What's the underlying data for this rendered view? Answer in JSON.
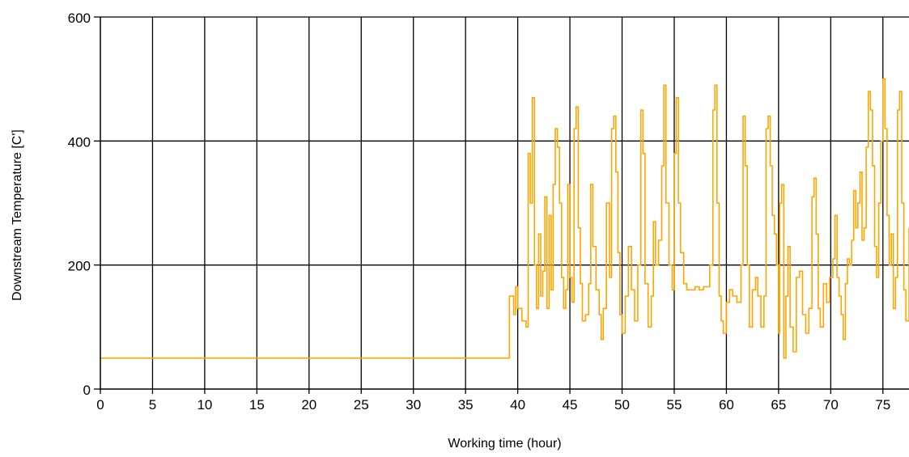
{
  "chart_data": {
    "type": "line",
    "title": "",
    "xlabel": "Working time (hour)",
    "ylabel": "Downstream Temperature [C']",
    "xlim": [
      0,
      77.5
    ],
    "ylim": [
      0,
      600
    ],
    "x_ticks": [
      0,
      5,
      10,
      15,
      20,
      25,
      30,
      35,
      40,
      45,
      50,
      55,
      60,
      65,
      70,
      75
    ],
    "y_ticks": [
      0,
      200,
      400,
      600
    ],
    "grid": true,
    "legend": "none",
    "series": [
      {
        "color": "#ffa500",
        "points": [
          [
            0,
            50
          ],
          [
            39.2,
            50
          ],
          [
            39.2,
            150
          ],
          [
            39.6,
            120
          ],
          [
            39.8,
            165
          ],
          [
            40.0,
            130
          ],
          [
            40.4,
            110
          ],
          [
            40.8,
            100
          ],
          [
            41.0,
            380
          ],
          [
            41.2,
            300
          ],
          [
            41.4,
            470
          ],
          [
            41.6,
            200
          ],
          [
            41.8,
            130
          ],
          [
            42.0,
            250
          ],
          [
            42.2,
            150
          ],
          [
            42.4,
            190
          ],
          [
            42.6,
            310
          ],
          [
            42.8,
            130
          ],
          [
            43.0,
            280
          ],
          [
            43.2,
            160
          ],
          [
            43.4,
            330
          ],
          [
            43.6,
            420
          ],
          [
            43.8,
            390
          ],
          [
            44.0,
            300
          ],
          [
            44.2,
            180
          ],
          [
            44.4,
            130
          ],
          [
            44.6,
            160
          ],
          [
            44.8,
            330
          ],
          [
            45.0,
            180
          ],
          [
            45.2,
            140
          ],
          [
            45.4,
            420
          ],
          [
            45.6,
            455
          ],
          [
            45.8,
            260
          ],
          [
            46.0,
            170
          ],
          [
            46.2,
            110
          ],
          [
            46.5,
            120
          ],
          [
            46.8,
            170
          ],
          [
            47.0,
            330
          ],
          [
            47.2,
            230
          ],
          [
            47.5,
            160
          ],
          [
            47.8,
            120
          ],
          [
            48.0,
            80
          ],
          [
            48.2,
            130
          ],
          [
            48.5,
            300
          ],
          [
            48.8,
            180
          ],
          [
            49.0,
            420
          ],
          [
            49.2,
            440
          ],
          [
            49.4,
            350
          ],
          [
            49.6,
            220
          ],
          [
            49.8,
            120
          ],
          [
            50.0,
            90
          ],
          [
            50.3,
            150
          ],
          [
            50.6,
            230
          ],
          [
            50.9,
            160
          ],
          [
            51.2,
            110
          ],
          [
            51.5,
            200
          ],
          [
            51.8,
            450
          ],
          [
            52.0,
            380
          ],
          [
            52.2,
            170
          ],
          [
            52.5,
            100
          ],
          [
            52.8,
            150
          ],
          [
            53.0,
            270
          ],
          [
            53.2,
            200
          ],
          [
            53.5,
            240
          ],
          [
            53.8,
            360
          ],
          [
            54.0,
            490
          ],
          [
            54.2,
            300
          ],
          [
            54.5,
            200
          ],
          [
            54.8,
            160
          ],
          [
            55.0,
            380
          ],
          [
            55.2,
            470
          ],
          [
            55.4,
            300
          ],
          [
            55.6,
            220
          ],
          [
            55.9,
            170
          ],
          [
            56.2,
            160
          ],
          [
            56.6,
            160
          ],
          [
            57.0,
            165
          ],
          [
            57.4,
            160
          ],
          [
            57.8,
            165
          ],
          [
            58.1,
            165
          ],
          [
            58.4,
            200
          ],
          [
            58.7,
            450
          ],
          [
            58.9,
            490
          ],
          [
            59.1,
            300
          ],
          [
            59.3,
            150
          ],
          [
            59.5,
            110
          ],
          [
            59.7,
            90
          ],
          [
            60.0,
            140
          ],
          [
            60.3,
            160
          ],
          [
            60.6,
            150
          ],
          [
            61.0,
            140
          ],
          [
            61.4,
            200
          ],
          [
            61.6,
            440
          ],
          [
            61.8,
            360
          ],
          [
            62.0,
            200
          ],
          [
            62.2,
            100
          ],
          [
            62.5,
            160
          ],
          [
            62.8,
            180
          ],
          [
            63.0,
            150
          ],
          [
            63.3,
            100
          ],
          [
            63.6,
            150
          ],
          [
            63.8,
            420
          ],
          [
            64.0,
            440
          ],
          [
            64.2,
            360
          ],
          [
            64.4,
            280
          ],
          [
            64.6,
            250
          ],
          [
            64.8,
            200
          ],
          [
            65.0,
            90
          ],
          [
            65.1,
            300
          ],
          [
            65.3,
            330
          ],
          [
            65.5,
            50
          ],
          [
            65.7,
            150
          ],
          [
            65.9,
            230
          ],
          [
            66.1,
            100
          ],
          [
            66.4,
            60
          ],
          [
            66.7,
            180
          ],
          [
            67.0,
            190
          ],
          [
            67.3,
            120
          ],
          [
            67.6,
            90
          ],
          [
            67.9,
            130
          ],
          [
            68.2,
            310
          ],
          [
            68.4,
            340
          ],
          [
            68.6,
            250
          ],
          [
            68.8,
            130
          ],
          [
            69.0,
            100
          ],
          [
            69.3,
            170
          ],
          [
            69.6,
            140
          ],
          [
            69.9,
            180
          ],
          [
            70.2,
            210
          ],
          [
            70.4,
            280
          ],
          [
            70.6,
            180
          ],
          [
            70.8,
            150
          ],
          [
            71.0,
            120
          ],
          [
            71.2,
            80
          ],
          [
            71.4,
            170
          ],
          [
            71.6,
            210
          ],
          [
            71.8,
            200
          ],
          [
            72.0,
            240
          ],
          [
            72.2,
            320
          ],
          [
            72.4,
            260
          ],
          [
            72.6,
            300
          ],
          [
            72.8,
            350
          ],
          [
            73.0,
            240
          ],
          [
            73.2,
            260
          ],
          [
            73.4,
            390
          ],
          [
            73.6,
            480
          ],
          [
            73.8,
            450
          ],
          [
            74.0,
            360
          ],
          [
            74.2,
            230
          ],
          [
            74.4,
            180
          ],
          [
            74.6,
            300
          ],
          [
            74.8,
            400
          ],
          [
            75.0,
            500
          ],
          [
            75.2,
            420
          ],
          [
            75.4,
            280
          ],
          [
            75.6,
            200
          ],
          [
            75.8,
            250
          ],
          [
            76.0,
            130
          ],
          [
            76.2,
            180
          ],
          [
            76.4,
            450
          ],
          [
            76.6,
            480
          ],
          [
            76.8,
            300
          ],
          [
            77.0,
            160
          ],
          [
            77.2,
            110
          ],
          [
            77.5,
            260
          ]
        ]
      }
    ]
  }
}
